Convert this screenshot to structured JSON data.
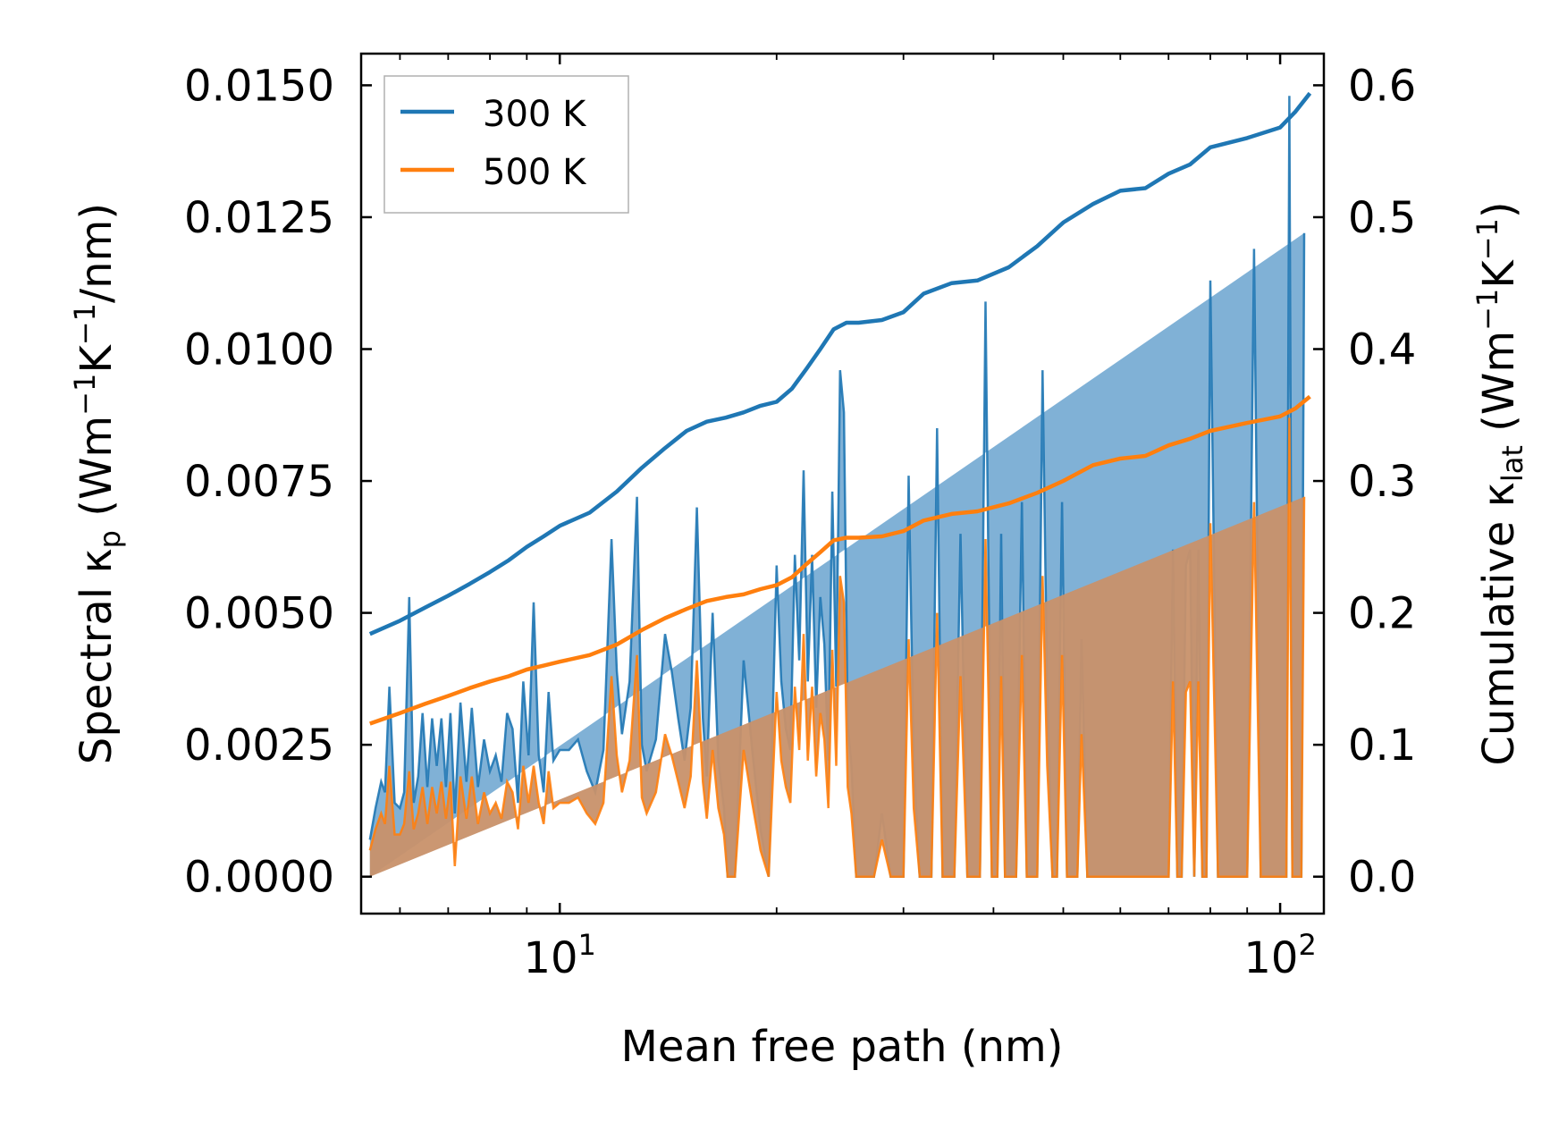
{
  "chart_data": {
    "type": "line",
    "title": "",
    "xlabel": "Mean free path (nm)",
    "xscale": "log",
    "xlim": [
      5.3,
      115
    ],
    "xticks": [
      {
        "value": 10,
        "base": "10",
        "exp": "1"
      },
      {
        "value": 100,
        "base": "10",
        "exp": "2"
      }
    ],
    "ylabel_left": {
      "pre": "Spectral κ",
      "sub": "p",
      "post": " (Wm",
      "sup1": "−1",
      "mid": "K",
      "sup2": "−1",
      "end": "/nm)"
    },
    "ylabel_right": {
      "pre": "Cumulative κ",
      "sub": "lat",
      "post": " (Wm",
      "sup1": "−1",
      "mid": "K",
      "sup2": "−1",
      "end": ")"
    },
    "ylim_left": [
      -0.0007,
      0.0156
    ],
    "ylim_right": [
      -0.028,
      0.624
    ],
    "yticks_left": [
      "0.0000",
      "0.0025",
      "0.0050",
      "0.0075",
      "0.0100",
      "0.0125",
      "0.0150"
    ],
    "yticks_right": [
      "0.0",
      "0.1",
      "0.2",
      "0.3",
      "0.4",
      "0.5",
      "0.6"
    ],
    "legend": {
      "position": "upper-left",
      "entries": [
        "300 K",
        "500 K"
      ]
    },
    "colors": {
      "300K": "#1f77b4",
      "500K": "#ff7f0e",
      "spectral_300K_fill": "#6aa3cf",
      "spectral_500K_fill": "#c8916a"
    },
    "spectral": {
      "x": [
        5.45,
        5.55,
        5.65,
        5.72,
        5.8,
        5.9,
        6.0,
        6.08,
        6.18,
        6.27,
        6.36,
        6.45,
        6.55,
        6.65,
        6.75,
        6.85,
        6.95,
        7.05,
        7.15,
        7.28,
        7.42,
        7.55,
        7.7,
        7.85,
        8.0,
        8.15,
        8.3,
        8.45,
        8.6,
        8.75,
        8.9,
        9.05,
        9.2,
        9.35,
        9.5,
        9.65,
        9.8,
        10.0,
        10.3,
        10.6,
        10.9,
        11.2,
        11.5,
        11.8,
        12.0,
        12.2,
        12.5,
        12.8,
        13.0,
        13.2,
        13.6,
        14.0,
        14.3,
        14.6,
        14.9,
        15.2,
        15.5,
        15.8,
        16.0,
        16.3,
        16.6,
        16.9,
        17.1,
        17.5,
        18.0,
        18.5,
        19.0,
        19.5,
        20.0,
        20.3,
        20.6,
        20.9,
        21.2,
        21.5,
        21.8,
        22.1,
        22.4,
        22.7,
        23.0,
        23.3,
        23.6,
        23.9,
        24.2,
        24.5,
        24.8,
        25.1,
        25.4,
        25.8,
        26.5,
        27.3,
        28.0,
        28.8,
        29.5,
        30.0,
        30.5,
        31.0,
        31.6,
        32.2,
        32.8,
        33.4,
        34.0,
        34.6,
        35.3,
        36.0,
        36.8,
        37.5,
        38.3,
        39.0,
        39.8,
        40.5,
        41.0,
        41.5,
        42.3,
        43.0,
        43.8,
        44.5,
        45.3,
        46.0,
        46.8,
        47.5,
        48.3,
        49.0,
        49.8,
        50.6,
        51.5,
        52.3,
        53.0,
        54.0,
        55.0,
        56.0,
        57.0,
        58.0,
        59.0,
        60.0,
        61.0,
        62.0,
        63.0,
        64.0,
        65.0,
        66.0,
        67.0,
        68.0,
        69.0,
        70.0,
        71.0,
        72.0,
        73.0,
        74.0,
        75.0,
        76.0,
        77.0,
        78.0,
        79.0,
        80.0,
        82.0,
        84.0,
        86.0,
        88.0,
        90.0,
        92.0,
        94.0,
        96.0,
        98.0,
        100.0,
        101.0,
        102.0,
        103.0,
        104.0,
        105.0,
        106.0,
        107.0,
        108.0,
        109.0,
        110.0
      ],
      "y300": [
        0.0007,
        0.0013,
        0.0018,
        0.0016,
        0.0036,
        0.0014,
        0.0013,
        0.0016,
        0.0053,
        0.0014,
        0.0019,
        0.0031,
        0.0017,
        0.003,
        0.0021,
        0.003,
        0.0017,
        0.0031,
        0.0012,
        0.0033,
        0.0018,
        0.0032,
        0.0017,
        0.0026,
        0.002,
        0.0023,
        0.0018,
        0.0031,
        0.0028,
        0.0014,
        0.0037,
        0.0023,
        0.0052,
        0.0023,
        0.0016,
        0.0035,
        0.0022,
        0.0024,
        0.0024,
        0.0026,
        0.002,
        0.0016,
        0.0024,
        0.0064,
        0.0039,
        0.0027,
        0.0037,
        0.0072,
        0.0025,
        0.002,
        0.0026,
        0.0046,
        0.0039,
        0.003,
        0.0022,
        0.0032,
        0.007,
        0.003,
        0.0019,
        0.005,
        0.0022,
        0.0013,
        0.0,
        0.0,
        0.0041,
        0.0024,
        0.0009,
        0.0,
        0.0059,
        0.0037,
        0.0028,
        0.0024,
        0.0061,
        0.0041,
        0.0077,
        0.0037,
        0.0061,
        0.0032,
        0.0053,
        0.0044,
        0.0022,
        0.0073,
        0.0036,
        0.0096,
        0.0088,
        0.0029,
        0.0021,
        0.0,
        0.0,
        0.0,
        0.0012,
        0.0,
        0.0,
        0.0,
        0.0076,
        0.0022,
        0.0,
        0.0,
        0.0,
        0.0085,
        0.0,
        0.0,
        0.0,
        0.0065,
        0.0,
        0.0,
        0.0,
        0.0109,
        0.0,
        0.0,
        0.0065,
        0.0,
        0.0,
        0.0,
        0.0071,
        0.0,
        0.0,
        0.0,
        0.0096,
        0.0035,
        0.0,
        0.0,
        0.0071,
        0.0,
        0.0,
        0.0,
        0.0045,
        0.0,
        0.0,
        0.0,
        0.0,
        0.0,
        0.0,
        0.0,
        0.0,
        0.0,
        0.0,
        0.0,
        0.0,
        0.0,
        0.0,
        0.0,
        0.0,
        0.0,
        0.0062,
        0.0,
        0.0,
        0.0059,
        0.0062,
        0.0,
        0.0062,
        0.0,
        0.0,
        0.0113,
        0.0,
        0.0,
        0.0,
        0.0,
        0.0,
        0.0119,
        0.0,
        0.0,
        0.0,
        0.0,
        0.0,
        0.0,
        0.0148,
        0.0,
        0.0,
        0.0,
        0.0,
        0.0122
      ],
      "y500": [
        0.0005,
        0.0009,
        0.0012,
        0.001,
        0.0021,
        0.0008,
        0.0008,
        0.001,
        0.002,
        0.0009,
        0.0012,
        0.0017,
        0.001,
        0.0017,
        0.0012,
        0.0018,
        0.0011,
        0.0018,
        0.0002,
        0.0019,
        0.0011,
        0.0019,
        0.001,
        0.0016,
        0.0012,
        0.0014,
        0.0011,
        0.0018,
        0.0016,
        0.0009,
        0.0021,
        0.0014,
        0.0021,
        0.0014,
        0.001,
        0.002,
        0.0013,
        0.0014,
        0.0014,
        0.0015,
        0.0012,
        0.001,
        0.0014,
        0.0038,
        0.0023,
        0.0016,
        0.0022,
        0.0042,
        0.0015,
        0.0012,
        0.0016,
        0.0027,
        0.0023,
        0.0018,
        0.0013,
        0.0019,
        0.0041,
        0.0018,
        0.0011,
        0.0024,
        0.0013,
        0.0008,
        0.0,
        0.0,
        0.0024,
        0.0014,
        0.0005,
        0.0,
        0.0035,
        0.0022,
        0.0017,
        0.0014,
        0.0036,
        0.0024,
        0.0046,
        0.0022,
        0.0036,
        0.0019,
        0.0031,
        0.0026,
        0.0013,
        0.0043,
        0.0021,
        0.0057,
        0.0052,
        0.0017,
        0.0012,
        0.0,
        0.0,
        0.0,
        0.0007,
        0.0,
        0.0,
        0.0,
        0.0045,
        0.0013,
        0.0,
        0.0,
        0.0,
        0.005,
        0.0,
        0.0,
        0.0,
        0.0038,
        0.0,
        0.0,
        0.0,
        0.0064,
        0.0,
        0.0,
        0.0038,
        0.0,
        0.0,
        0.0,
        0.0042,
        0.0,
        0.0,
        0.0,
        0.0057,
        0.0021,
        0.0,
        0.0,
        0.0042,
        0.0,
        0.0,
        0.0,
        0.0027,
        0.0,
        0.0,
        0.0,
        0.0,
        0.0,
        0.0,
        0.0,
        0.0,
        0.0,
        0.0,
        0.0,
        0.0,
        0.0,
        0.0,
        0.0,
        0.0,
        0.0,
        0.0037,
        0.0,
        0.0,
        0.0035,
        0.0037,
        0.0,
        0.0037,
        0.0,
        0.0,
        0.0067,
        0.0,
        0.0,
        0.0,
        0.0,
        0.0,
        0.0071,
        0.0,
        0.0,
        0.0,
        0.0,
        0.0,
        0.0,
        0.0087,
        0.0,
        0.0,
        0.0,
        0.0,
        0.0072
      ]
    },
    "cumulative": [
      {
        "name": "300 K",
        "x": [
          5.45,
          6.0,
          6.5,
          7.0,
          7.5,
          8.0,
          8.5,
          9.0,
          9.5,
          10.0,
          11.0,
          12.0,
          13.0,
          14.0,
          15.0,
          16.0,
          17.0,
          18.0,
          19.0,
          20.0,
          21.0,
          22.0,
          23.0,
          24.0,
          25.0,
          26.0,
          28.0,
          30.0,
          32.0,
          35.0,
          38.0,
          42.0,
          46.0,
          50.0,
          55.0,
          60.0,
          65.0,
          70.0,
          75.0,
          80.0,
          90.0,
          100.0,
          105.0,
          110.0
        ],
        "y": [
          0.184,
          0.194,
          0.204,
          0.213,
          0.222,
          0.231,
          0.24,
          0.25,
          0.258,
          0.266,
          0.276,
          0.292,
          0.31,
          0.325,
          0.338,
          0.345,
          0.348,
          0.352,
          0.357,
          0.36,
          0.37,
          0.385,
          0.4,
          0.415,
          0.42,
          0.42,
          0.422,
          0.428,
          0.442,
          0.45,
          0.452,
          0.462,
          0.478,
          0.496,
          0.51,
          0.52,
          0.522,
          0.533,
          0.54,
          0.553,
          0.56,
          0.568,
          0.58,
          0.594
        ]
      },
      {
        "name": "500 K",
        "x": [
          5.45,
          6.0,
          6.5,
          7.0,
          7.5,
          8.0,
          8.5,
          9.0,
          9.5,
          10.0,
          11.0,
          12.0,
          13.0,
          14.0,
          15.0,
          16.0,
          17.0,
          18.0,
          19.0,
          20.0,
          21.0,
          22.0,
          23.0,
          24.0,
          25.0,
          26.0,
          28.0,
          30.0,
          32.0,
          35.0,
          38.0,
          42.0,
          46.0,
          50.0,
          55.0,
          60.0,
          65.0,
          70.0,
          75.0,
          80.0,
          90.0,
          100.0,
          105.0,
          110.0
        ],
        "y": [
          0.116,
          0.124,
          0.131,
          0.137,
          0.143,
          0.148,
          0.152,
          0.157,
          0.16,
          0.163,
          0.168,
          0.176,
          0.187,
          0.196,
          0.203,
          0.209,
          0.212,
          0.214,
          0.218,
          0.221,
          0.227,
          0.237,
          0.246,
          0.255,
          0.257,
          0.257,
          0.258,
          0.262,
          0.27,
          0.275,
          0.277,
          0.283,
          0.291,
          0.3,
          0.312,
          0.317,
          0.319,
          0.327,
          0.332,
          0.338,
          0.344,
          0.349,
          0.355,
          0.364
        ]
      }
    ]
  }
}
